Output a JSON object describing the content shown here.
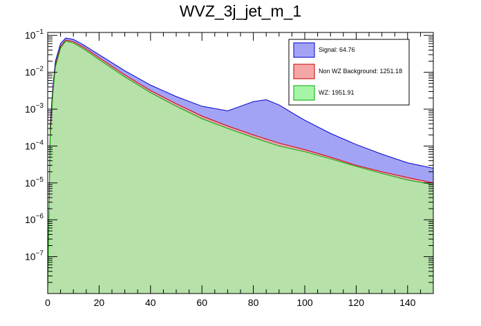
{
  "chart_data": {
    "type": "area",
    "title": "WVZ_3j_jet_m_1",
    "xlabel": "",
    "ylabel": "",
    "xlim": [
      0,
      150
    ],
    "ylim": [
      1e-08,
      0.12
    ],
    "y_scale": "log",
    "grid": false,
    "legend_placement": "top-right",
    "x_ticks": [
      0,
      20,
      40,
      60,
      80,
      100,
      120,
      140
    ],
    "x_tick_labels": [
      "0",
      "20",
      "40",
      "60",
      "80",
      "100",
      "120",
      "140"
    ],
    "y_ticks": [
      1e-07,
      1e-06,
      1e-05,
      0.0001,
      0.001,
      0.01,
      0.1
    ],
    "y_tick_labels": [
      {
        "base": "10",
        "exp": "−7"
      },
      {
        "base": "10",
        "exp": "−6"
      },
      {
        "base": "10",
        "exp": "−5"
      },
      {
        "base": "10",
        "exp": "−4"
      },
      {
        "base": "10",
        "exp": "−3"
      },
      {
        "base": "10",
        "exp": "−2"
      },
      {
        "base": "10",
        "exp": "−1"
      }
    ],
    "series": [
      {
        "name": "Signal: 64.76",
        "color": "#a3a3f5",
        "edge": "#0000cc",
        "points": [
          [
            0,
            1e-08
          ],
          [
            1,
            0.0004
          ],
          [
            2,
            0.004
          ],
          [
            3,
            0.02
          ],
          [
            5,
            0.06
          ],
          [
            7,
            0.085
          ],
          [
            10,
            0.078
          ],
          [
            14,
            0.055
          ],
          [
            20,
            0.03
          ],
          [
            30,
            0.011
          ],
          [
            40,
            0.0045
          ],
          [
            50,
            0.0022
          ],
          [
            60,
            0.0012
          ],
          [
            70,
            0.0009
          ],
          [
            75,
            0.0012
          ],
          [
            80,
            0.0016
          ],
          [
            85,
            0.0018
          ],
          [
            90,
            0.0013
          ],
          [
            95,
            0.0008
          ],
          [
            100,
            0.0005
          ],
          [
            110,
            0.00022
          ],
          [
            120,
            0.00011
          ],
          [
            130,
            6e-05
          ],
          [
            140,
            3.5e-05
          ],
          [
            150,
            2.5e-05
          ]
        ]
      },
      {
        "name": "Non WZ Background: 1251.18",
        "color": "#f5a6a6",
        "edge": "#cc0000",
        "points": [
          [
            0,
            1e-08
          ],
          [
            1,
            0.0003
          ],
          [
            2,
            0.003
          ],
          [
            3,
            0.016
          ],
          [
            5,
            0.05
          ],
          [
            7,
            0.075
          ],
          [
            10,
            0.068
          ],
          [
            14,
            0.048
          ],
          [
            20,
            0.025
          ],
          [
            30,
            0.0085
          ],
          [
            40,
            0.0032
          ],
          [
            50,
            0.0014
          ],
          [
            60,
            0.00065
          ],
          [
            70,
            0.00035
          ],
          [
            80,
            0.0002
          ],
          [
            90,
            0.00012
          ],
          [
            100,
            8e-05
          ],
          [
            110,
            5e-05
          ],
          [
            120,
            3e-05
          ],
          [
            130,
            2e-05
          ],
          [
            140,
            1.4e-05
          ],
          [
            150,
            1e-05
          ]
        ]
      },
      {
        "name": "WZ: 1951.91",
        "color": "#a6f5a6",
        "edge": "#00aa00",
        "points": [
          [
            0,
            1e-08
          ],
          [
            1,
            0.0002
          ],
          [
            2,
            0.0025
          ],
          [
            3,
            0.014
          ],
          [
            5,
            0.045
          ],
          [
            7,
            0.07
          ],
          [
            10,
            0.062
          ],
          [
            14,
            0.043
          ],
          [
            20,
            0.022
          ],
          [
            30,
            0.0075
          ],
          [
            40,
            0.0028
          ],
          [
            50,
            0.0012
          ],
          [
            60,
            0.00055
          ],
          [
            70,
            0.0003
          ],
          [
            80,
            0.00017
          ],
          [
            90,
            0.0001
          ],
          [
            100,
            7e-05
          ],
          [
            110,
            4.5e-05
          ],
          [
            120,
            2.8e-05
          ],
          [
            130,
            1.8e-05
          ],
          [
            140,
            1.2e-05
          ],
          [
            150,
            9e-06
          ]
        ]
      }
    ]
  }
}
